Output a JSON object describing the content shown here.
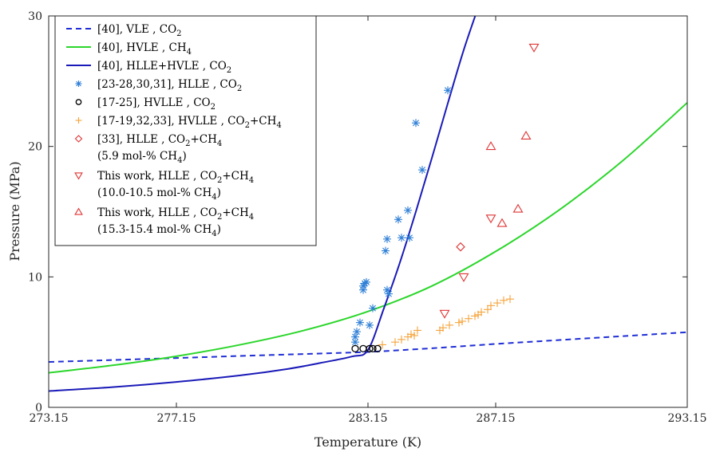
{
  "chart_data": {
    "type": "scatter",
    "xlabel": "Temperature (K)",
    "ylabel": "Pressure (MPa)",
    "xlim": [
      273.15,
      293.15
    ],
    "ylim": [
      0,
      30
    ],
    "xticks": [
      273.15,
      277.15,
      283.15,
      287.15,
      293.15
    ],
    "xtick_labels": [
      "273.15",
      "277.15",
      "283.15",
      "287.15",
      "293.15"
    ],
    "yticks": [
      0,
      10,
      20,
      30
    ],
    "ytick_labels": [
      "0",
      "10",
      "20",
      "30"
    ],
    "legend_position": "top-left",
    "lines": [
      {
        "name_parts": [
          "[40], VLE , CO",
          "2"
        ],
        "style": "dashed",
        "color": "#1f2ed6",
        "x": [
          273.15,
          275.15,
          277.15,
          279.15,
          281.15,
          283.15,
          285.15,
          287.15,
          289.15,
          291.15,
          293.15
        ],
        "y": [
          3.48,
          3.63,
          3.78,
          3.94,
          4.09,
          4.25,
          4.53,
          4.86,
          5.16,
          5.46,
          5.76
        ]
      },
      {
        "name_parts": [
          "[40], HVLE , CH",
          "4"
        ],
        "style": "solid",
        "color": "#2bd62b",
        "x": [
          273.15,
          275.15,
          277.15,
          279.15,
          281.15,
          283.15,
          285.15,
          287.15,
          289.15,
          291.15,
          293.15
        ],
        "y": [
          2.65,
          3.22,
          3.92,
          4.8,
          5.9,
          7.35,
          9.3,
          11.95,
          15.15,
          18.95,
          23.35
        ]
      },
      {
        "name_parts": [
          "[40], HLLE+HVLE , CO",
          "2"
        ],
        "style": "solid",
        "color": "#1a1ab8",
        "x": [
          273.15,
          275.15,
          277.15,
          279.15,
          280.65,
          281.65,
          282.65,
          283.15,
          283.65,
          284.15,
          284.65,
          285.15,
          285.65,
          286.15,
          286.65
        ],
        "y": [
          1.25,
          1.55,
          1.95,
          2.45,
          2.95,
          3.4,
          3.9,
          4.4,
          7.6,
          11.1,
          15.0,
          19.1,
          23.3,
          27.4,
          31.0
        ]
      }
    ],
    "series": [
      {
        "name_parts": [
          "[23-28,30,31], HLLE , CO",
          "2"
        ],
        "marker": "asterisk",
        "color": "#2e7fd6",
        "points": [
          [
            282.75,
            5.0
          ],
          [
            282.75,
            5.4
          ],
          [
            282.8,
            5.8
          ],
          [
            282.9,
            6.5
          ],
          [
            283.0,
            9.0
          ],
          [
            283.0,
            9.3
          ],
          [
            283.05,
            9.5
          ],
          [
            283.1,
            9.6
          ],
          [
            283.2,
            6.3
          ],
          [
            283.3,
            7.6
          ],
          [
            283.7,
            12.0
          ],
          [
            283.75,
            12.9
          ],
          [
            283.75,
            9.0
          ],
          [
            283.8,
            8.7
          ],
          [
            284.1,
            14.4
          ],
          [
            284.2,
            13.0
          ],
          [
            284.4,
            15.1
          ],
          [
            284.45,
            13.0
          ],
          [
            284.65,
            21.8
          ],
          [
            284.85,
            18.2
          ],
          [
            285.65,
            24.3
          ]
        ]
      },
      {
        "name_parts": [
          "[17-25], HVLLE , CO",
          "2"
        ],
        "marker": "circle",
        "color": "#000000",
        "points": [
          [
            282.75,
            4.5
          ],
          [
            283.0,
            4.5
          ],
          [
            283.2,
            4.5
          ],
          [
            283.3,
            4.5
          ],
          [
            283.45,
            4.5
          ]
        ]
      },
      {
        "name_parts": [
          "[17-19,32,33], HVLLE , CO",
          "2",
          "+CH",
          "4"
        ],
        "marker": "plus",
        "color": "#f5a33a",
        "points": [
          [
            283.6,
            4.8
          ],
          [
            284.0,
            5.0
          ],
          [
            284.2,
            5.2
          ],
          [
            284.4,
            5.4
          ],
          [
            284.5,
            5.6
          ],
          [
            284.6,
            5.5
          ],
          [
            284.7,
            5.9
          ],
          [
            285.4,
            5.9
          ],
          [
            285.5,
            6.1
          ],
          [
            285.7,
            6.3
          ],
          [
            286.0,
            6.5
          ],
          [
            286.1,
            6.6
          ],
          [
            286.3,
            6.8
          ],
          [
            286.5,
            7.0
          ],
          [
            286.6,
            7.1
          ],
          [
            286.7,
            7.3
          ],
          [
            286.9,
            7.5
          ],
          [
            287.0,
            7.8
          ],
          [
            287.2,
            8.0
          ],
          [
            287.4,
            8.2
          ],
          [
            287.6,
            8.3
          ]
        ]
      },
      {
        "name_parts": [
          "[33], HLLE , CO",
          "2",
          "+CH",
          "4"
        ],
        "name2_parts": [
          "(5.9 mol-% CH",
          "4",
          ")"
        ],
        "marker": "diamond",
        "color": "#e03434",
        "points": [
          [
            286.05,
            12.3
          ]
        ]
      },
      {
        "name_parts": [
          "This work, HLLE , CO",
          "2",
          "+CH",
          "4"
        ],
        "name2_parts": [
          "(10.0-10.5 mol-% CH",
          "4",
          ")"
        ],
        "marker": "triangle-down",
        "color": "#e03434",
        "points": [
          [
            285.55,
            7.2
          ],
          [
            286.15,
            10.0
          ],
          [
            287.0,
            14.5
          ],
          [
            288.35,
            27.6
          ]
        ]
      },
      {
        "name_parts": [
          "This work, HLLE , CO",
          "2",
          "+CH",
          "4"
        ],
        "name2_parts": [
          "(15.3-15.4 mol-% CH",
          "4",
          ")"
        ],
        "marker": "triangle-up",
        "color": "#e03434",
        "points": [
          [
            287.0,
            20.0
          ],
          [
            287.35,
            14.1
          ],
          [
            287.85,
            15.2
          ],
          [
            288.1,
            20.8
          ]
        ]
      }
    ]
  }
}
